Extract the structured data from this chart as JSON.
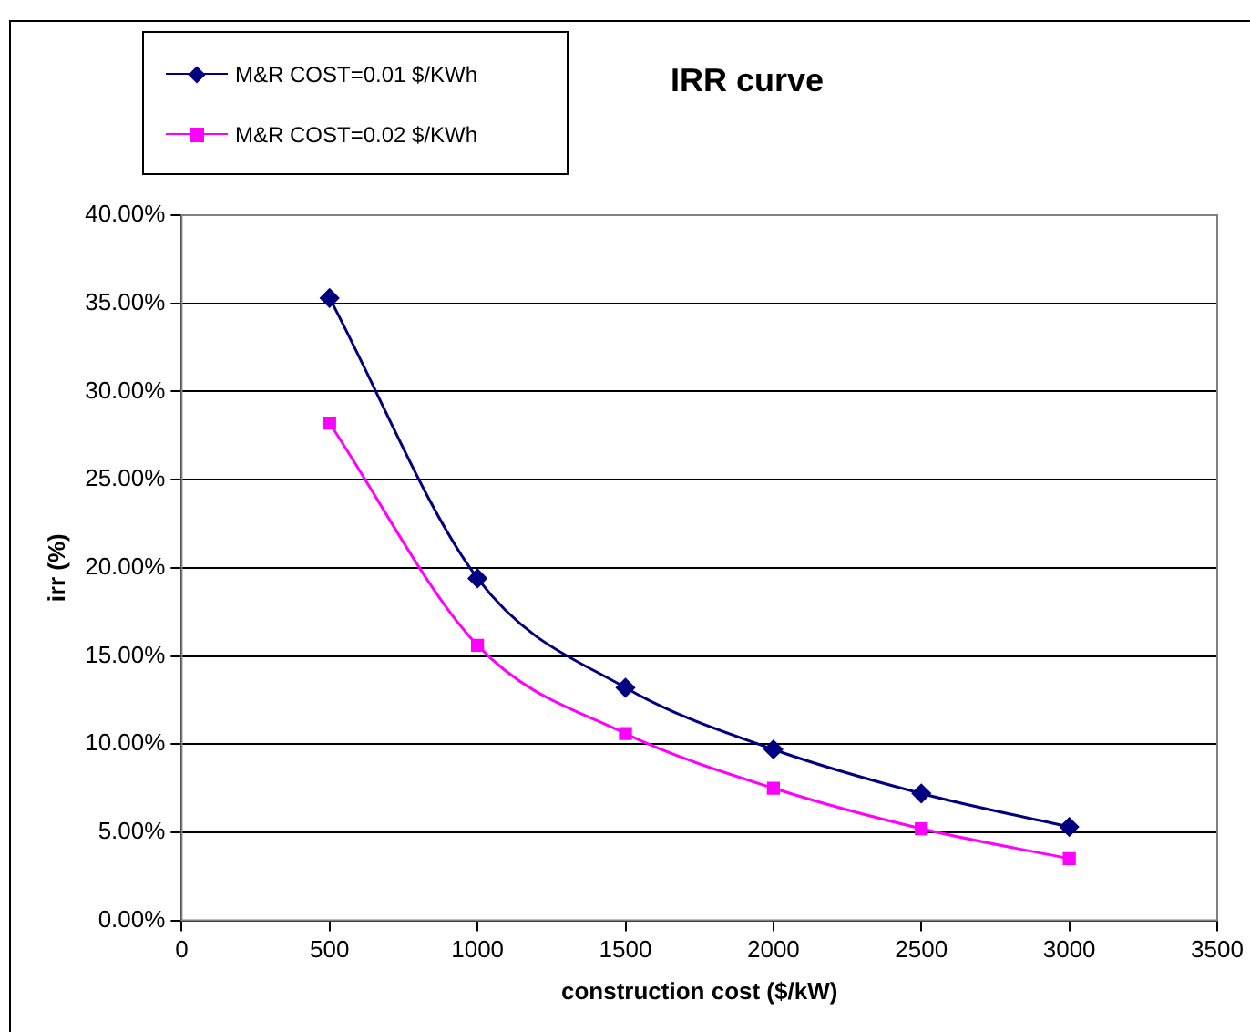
{
  "chart_data": {
    "type": "line",
    "title": "IRR curve",
    "xlabel": "construction cost ($/kW)",
    "ylabel": "irr (%)",
    "x": [
      500,
      1000,
      1500,
      2000,
      2500,
      3000
    ],
    "series": [
      {
        "name": "M&R COST=0.01 $/KWh",
        "color": "#000080",
        "marker": "diamond",
        "values": [
          35.3,
          19.4,
          13.2,
          9.7,
          7.2,
          5.3
        ]
      },
      {
        "name": "M&R COST=0.02 $/KWh",
        "color": "#ff00ff",
        "marker": "square",
        "values": [
          28.2,
          15.6,
          10.6,
          7.5,
          5.2,
          3.5
        ]
      }
    ],
    "xlim": [
      0,
      3500
    ],
    "xticks": [
      0,
      500,
      1000,
      1500,
      2000,
      2500,
      3000,
      3500
    ],
    "ylim": [
      0,
      40
    ],
    "yticks": [
      {
        "value": 0,
        "label": "0.00%"
      },
      {
        "value": 5,
        "label": "5.00%"
      },
      {
        "value": 10,
        "label": "10.00%"
      },
      {
        "value": 15,
        "label": "15.00%"
      },
      {
        "value": 20,
        "label": "20.00%"
      },
      {
        "value": 25,
        "label": "25.00%"
      },
      {
        "value": 30,
        "label": "30.00%"
      },
      {
        "value": 35,
        "label": "35.00%"
      },
      {
        "value": 40,
        "label": "40.00%"
      }
    ],
    "grid": "y",
    "legend": "top left",
    "line_style": "solid"
  }
}
